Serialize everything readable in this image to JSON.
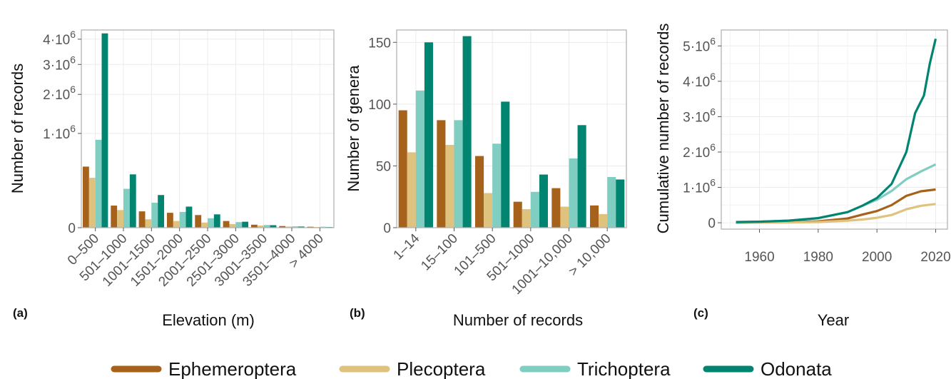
{
  "colors": {
    "Ephemeroptera": "#a6611a",
    "Plecoptera": "#dfc27d",
    "Trichoptera": "#80cdc1",
    "Odonata": "#018571"
  },
  "legend": [
    "Ephemeroptera",
    "Plecoptera",
    "Trichoptera",
    "Odonata"
  ],
  "chart_data": [
    {
      "type": "bar",
      "panel_label": "(a)",
      "xlabel": "Elevation (m)",
      "ylabel": "Number of records",
      "y_scale": "sqrt",
      "ylim": [
        0,
        4400000
      ],
      "yticks": [
        0,
        1000000,
        2000000,
        3000000,
        4000000
      ],
      "ytick_labels": [
        "0",
        "1·10^6",
        "2·10^6",
        "3·10^6",
        "4·10^6"
      ],
      "categories": [
        "0–500",
        "501–1000",
        "1001–1500",
        "1501–2000",
        "2001–2500",
        "2501–3000",
        "3001–3500",
        "3501–4000",
        "> 4000"
      ],
      "series": [
        {
          "name": "Ephemeroptera",
          "values": [
            420000,
            55000,
            30000,
            25000,
            18000,
            5000,
            1000,
            300,
            100
          ]
        },
        {
          "name": "Plecoptera",
          "values": [
            280000,
            35000,
            8000,
            5000,
            3000,
            1500,
            500,
            150,
            50
          ]
        },
        {
          "name": "Trichoptera",
          "values": [
            870000,
            170000,
            70000,
            28000,
            10000,
            3500,
            800,
            200,
            100
          ]
        },
        {
          "name": "Odonata",
          "values": [
            4250000,
            320000,
            120000,
            50000,
            20000,
            4000,
            700,
            150,
            50
          ]
        }
      ]
    },
    {
      "type": "bar",
      "panel_label": "(b)",
      "xlabel": "Number of records",
      "ylabel": "Number of genera",
      "ylim": [
        0,
        160
      ],
      "yticks": [
        0,
        50,
        100,
        150
      ],
      "ytick_labels": [
        "0",
        "50",
        "100",
        "150"
      ],
      "categories": [
        "1–14",
        "15–100",
        "101–500",
        "501–1000",
        "1001–10,000",
        "> 10,000"
      ],
      "series": [
        {
          "name": "Ephemeroptera",
          "values": [
            95,
            87,
            58,
            21,
            32,
            18
          ]
        },
        {
          "name": "Plecoptera",
          "values": [
            61,
            67,
            28,
            15,
            17,
            11
          ]
        },
        {
          "name": "Trichoptera",
          "values": [
            111,
            87,
            68,
            29,
            56,
            41
          ]
        },
        {
          "name": "Odonata",
          "values": [
            150,
            155,
            102,
            43,
            83,
            39
          ]
        }
      ]
    },
    {
      "type": "line",
      "panel_label": "(c)",
      "xlabel": "Year",
      "ylabel": "Cumulative number of records",
      "xlim": [
        1947,
        2024
      ],
      "xticks": [
        1960,
        1980,
        2000,
        2020
      ],
      "xtick_labels": [
        "1960",
        "1980",
        "2000",
        "2020"
      ],
      "ylim": [
        -180000,
        5450000
      ],
      "yticks": [
        0,
        1000000,
        2000000,
        3000000,
        4000000,
        5000000
      ],
      "ytick_labels": [
        "0",
        "1·10^6",
        "2·10^6",
        "3·10^6",
        "4·10^6",
        "5·10^6"
      ],
      "series": [
        {
          "name": "Ephemeroptera",
          "x": [
            1952,
            1960,
            1970,
            1980,
            1990,
            1995,
            2000,
            2005,
            2010,
            2015,
            2020
          ],
          "y": [
            0,
            5000,
            15000,
            40000,
            120000,
            230000,
            330000,
            500000,
            760000,
            890000,
            940000
          ]
        },
        {
          "name": "Plecoptera",
          "x": [
            1952,
            1960,
            1970,
            1980,
            1990,
            1995,
            2000,
            2005,
            2010,
            2015,
            2020
          ],
          "y": [
            0,
            3000,
            8000,
            20000,
            60000,
            90000,
            140000,
            220000,
            380000,
            480000,
            530000
          ]
        },
        {
          "name": "Trichoptera",
          "x": [
            1952,
            1960,
            1970,
            1980,
            1990,
            1995,
            2000,
            2005,
            2010,
            2015,
            2020
          ],
          "y": [
            20000,
            30000,
            60000,
            130000,
            300000,
            480000,
            650000,
            900000,
            1230000,
            1450000,
            1650000
          ]
        },
        {
          "name": "Odonata",
          "x": [
            1952,
            1960,
            1970,
            1980,
            1990,
            1995,
            2000,
            2005,
            2010,
            2013,
            2016,
            2018,
            2020
          ],
          "y": [
            20000,
            30000,
            60000,
            130000,
            300000,
            480000,
            700000,
            1100000,
            2000000,
            3100000,
            3600000,
            4500000,
            5200000
          ]
        }
      ]
    }
  ]
}
